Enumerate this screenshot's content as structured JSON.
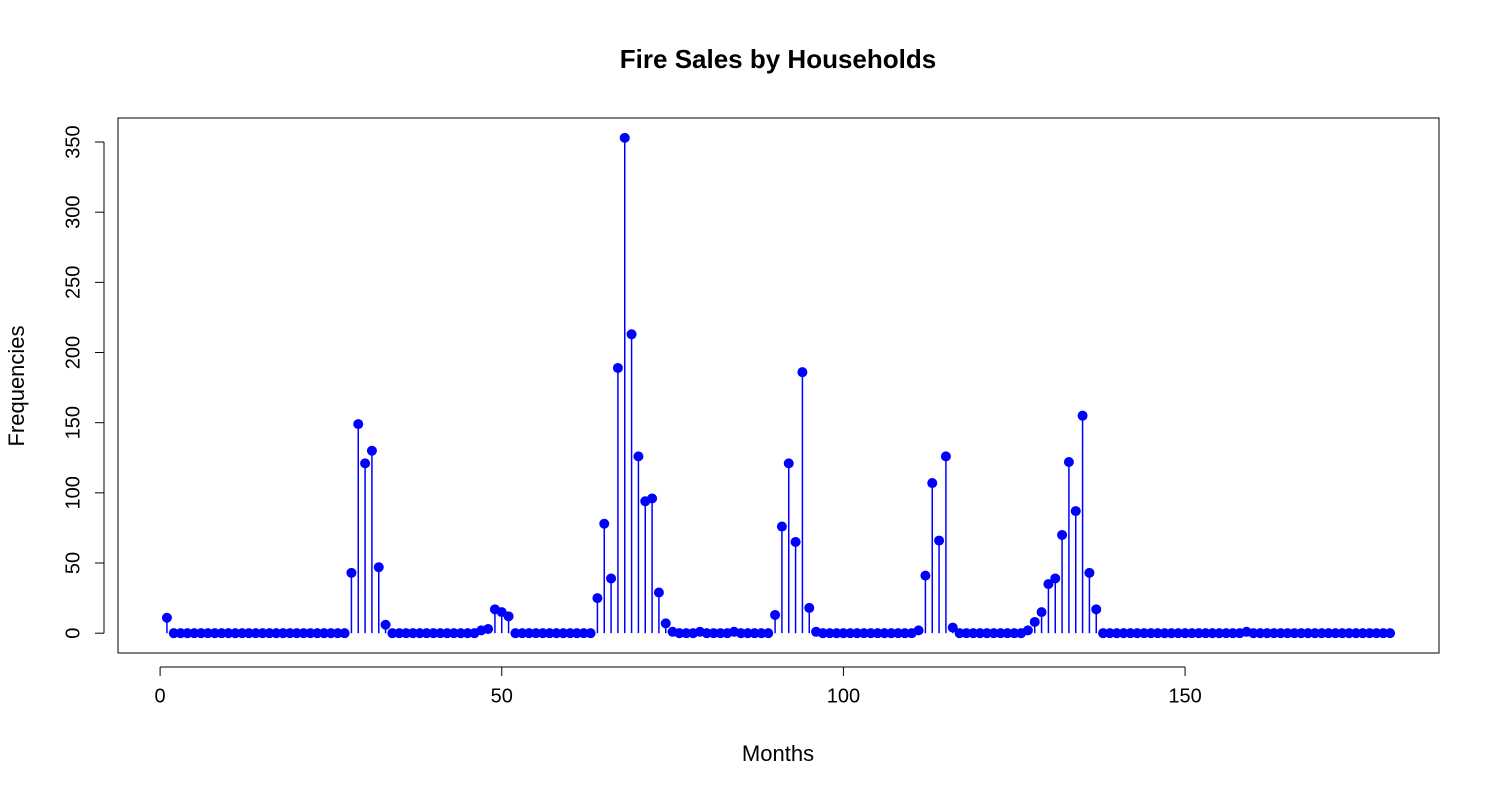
{
  "chart_data": {
    "type": "stem",
    "title": "Fire Sales by Households",
    "x_label": "Months",
    "y_label": "Frequencies",
    "color": "#0000ff",
    "x": [
      1,
      2,
      3,
      4,
      5,
      6,
      7,
      8,
      9,
      10,
      11,
      12,
      13,
      14,
      15,
      16,
      17,
      18,
      19,
      20,
      21,
      22,
      23,
      24,
      25,
      26,
      27,
      28,
      29,
      30,
      31,
      32,
      33,
      34,
      35,
      36,
      37,
      38,
      39,
      40,
      41,
      42,
      43,
      44,
      45,
      46,
      47,
      48,
      49,
      50,
      51,
      52,
      53,
      54,
      55,
      56,
      57,
      58,
      59,
      60,
      61,
      62,
      63,
      64,
      65,
      66,
      67,
      68,
      69,
      70,
      71,
      72,
      73,
      74,
      75,
      76,
      77,
      78,
      79,
      80,
      81,
      82,
      83,
      84,
      85,
      86,
      87,
      88,
      89,
      90,
      91,
      92,
      93,
      94,
      95,
      96,
      97,
      98,
      99,
      100,
      101,
      102,
      103,
      104,
      105,
      106,
      107,
      108,
      109,
      110,
      111,
      112,
      113,
      114,
      115,
      116,
      117,
      118,
      119,
      120,
      121,
      122,
      123,
      124,
      125,
      126,
      127,
      128,
      129,
      130,
      131,
      132,
      133,
      134,
      135,
      136,
      137,
      138,
      139,
      140,
      141,
      142,
      143,
      144,
      145,
      146,
      147,
      148,
      149,
      150,
      151,
      152,
      153,
      154,
      155,
      156,
      157,
      158,
      159,
      160,
      161,
      162,
      163,
      164,
      165,
      166,
      167,
      168,
      169,
      170,
      171,
      172,
      173,
      174,
      175,
      176,
      177,
      178,
      179,
      180
    ],
    "values": [
      11,
      0,
      0,
      0,
      0,
      0,
      0,
      0,
      0,
      0,
      0,
      0,
      0,
      0,
      0,
      0,
      0,
      0,
      0,
      0,
      0,
      0,
      0,
      0,
      0,
      0,
      0,
      43,
      149,
      121,
      130,
      47,
      6,
      0,
      0,
      0,
      0,
      0,
      0,
      0,
      0,
      0,
      0,
      0,
      0,
      0,
      2,
      3,
      17,
      15,
      12,
      0,
      0,
      0,
      0,
      0,
      0,
      0,
      0,
      0,
      0,
      0,
      0,
      25,
      78,
      39,
      189,
      353,
      213,
      126,
      94,
      96,
      29,
      7,
      1,
      0,
      0,
      0,
      1,
      0,
      0,
      0,
      0,
      1,
      0,
      0,
      0,
      0,
      0,
      13,
      76,
      121,
      65,
      186,
      18,
      1,
      0,
      0,
      0,
      0,
      0,
      0,
      0,
      0,
      0,
      0,
      0,
      0,
      0,
      0,
      2,
      41,
      107,
      66,
      126,
      4,
      0,
      0,
      0,
      0,
      0,
      0,
      0,
      0,
      0,
      0,
      2,
      8,
      15,
      35,
      39,
      70,
      122,
      87,
      155,
      43,
      17,
      0,
      0,
      0,
      0,
      0,
      0,
      0,
      0,
      0,
      0,
      0,
      0,
      0,
      0,
      0,
      0,
      0,
      0,
      0,
      0,
      0,
      1,
      0,
      0,
      0,
      0,
      0,
      0,
      0,
      0,
      0,
      0,
      0,
      0,
      0,
      0,
      0,
      0,
      0,
      0,
      0,
      0,
      0
    ],
    "xlim": [
      -6.16,
      187.16
    ],
    "ylim": [
      -14.12,
      367.12
    ],
    "xticks": [
      0,
      50,
      100,
      150
    ],
    "yticks": [
      0,
      50,
      100,
      150,
      200,
      250,
      300,
      350
    ]
  }
}
